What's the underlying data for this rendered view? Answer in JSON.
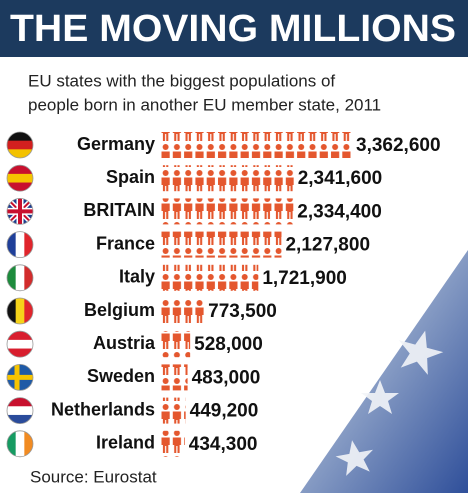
{
  "chart_data": {
    "type": "pictograph",
    "title": "THE MOVING MILLIONS",
    "subtitle": [
      "EU states with the biggest populations of",
      "people born in another EU member state, 2011"
    ],
    "categories": [
      "Germany",
      "Spain",
      "BRITAIN",
      "France",
      "Italy",
      "Belgium",
      "Austria",
      "Sweden",
      "Netherlands",
      "Ireland"
    ],
    "values": [
      3362600,
      2341600,
      2334400,
      2127800,
      1721900,
      773500,
      528000,
      483000,
      449200,
      434300
    ],
    "value_labels": [
      "3,362,600",
      "2,341,600",
      "2,334,400",
      "2,127,800",
      "1,721,900",
      "773,500",
      "528,000",
      "483,000",
      "449,200",
      "434,300"
    ],
    "color": "#e4572e",
    "source": "Source: Eurostat"
  }
}
